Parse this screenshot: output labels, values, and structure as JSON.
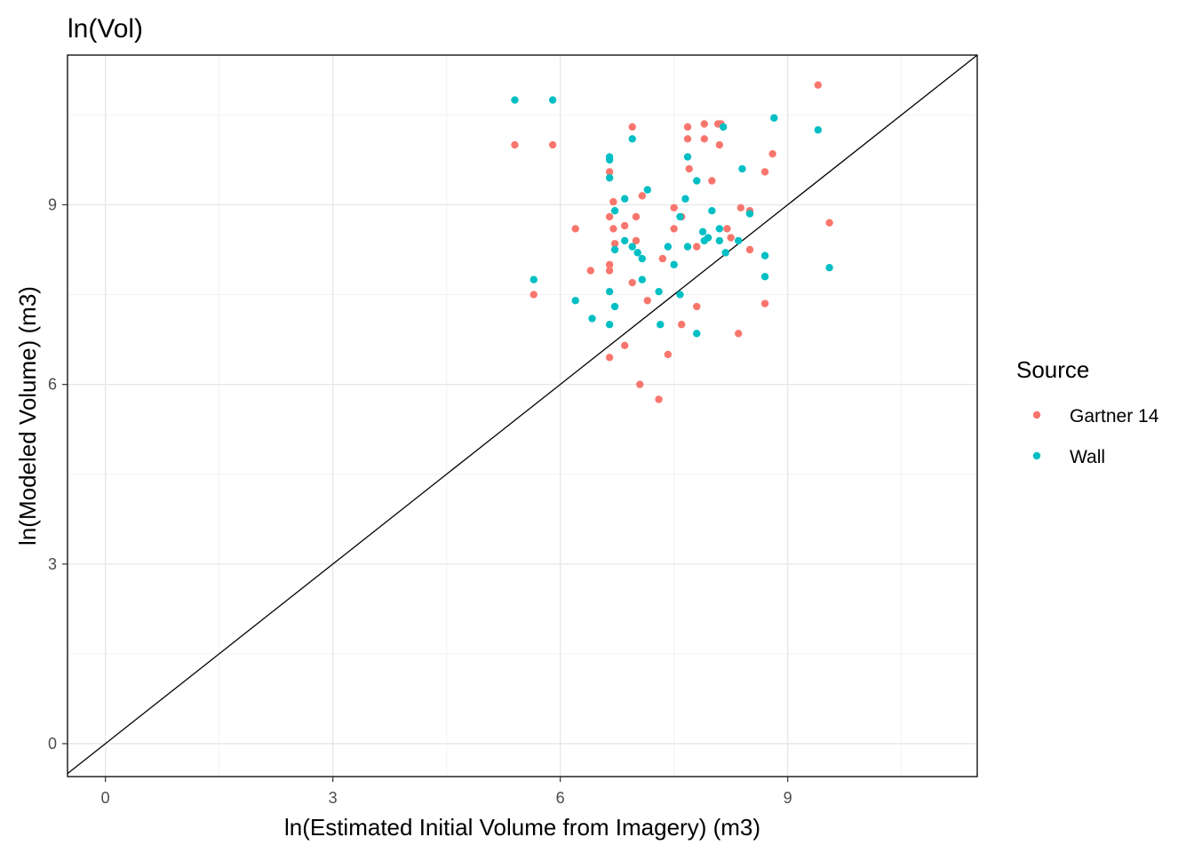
{
  "chart_data": {
    "type": "scatter",
    "title": "ln(Vol)",
    "xlabel": "ln(Estimated Initial Volume from Imagery) (m3)",
    "ylabel": "ln(Modeled Volume) (m3)",
    "xlim": [
      -0.5,
      11.5
    ],
    "ylim": [
      -0.55,
      11.5
    ],
    "x_ticks": [
      0,
      3,
      6,
      9
    ],
    "y_ticks": [
      0,
      3,
      6,
      9
    ],
    "x_tick_labels": [
      "0",
      "3",
      "6",
      "9"
    ],
    "y_tick_labels": [
      "0",
      "3",
      "6",
      "9"
    ],
    "grid": true,
    "reference_line": "y = x",
    "legend": {
      "title": "Source",
      "position": "right"
    },
    "series": [
      {
        "name": "Gartner 14",
        "color": "#F8766D",
        "points": [
          [
            5.4,
            10.0
          ],
          [
            5.9,
            10.0
          ],
          [
            5.65,
            7.5
          ],
          [
            6.2,
            8.6
          ],
          [
            6.4,
            7.9
          ],
          [
            6.65,
            9.55
          ],
          [
            6.65,
            8.8
          ],
          [
            6.65,
            8.0
          ],
          [
            6.65,
            7.9
          ],
          [
            6.65,
            6.45
          ],
          [
            6.7,
            9.05
          ],
          [
            6.7,
            8.6
          ],
          [
            6.72,
            8.35
          ],
          [
            6.85,
            8.65
          ],
          [
            6.85,
            6.65
          ],
          [
            6.95,
            10.3
          ],
          [
            6.95,
            7.7
          ],
          [
            7.0,
            8.8
          ],
          [
            7.0,
            8.4
          ],
          [
            7.05,
            6.0
          ],
          [
            7.08,
            9.15
          ],
          [
            7.15,
            7.4
          ],
          [
            7.35,
            8.1
          ],
          [
            7.3,
            5.75
          ],
          [
            7.42,
            6.5
          ],
          [
            7.5,
            8.95
          ],
          [
            7.5,
            8.6
          ],
          [
            7.6,
            8.8
          ],
          [
            7.6,
            7.0
          ],
          [
            7.68,
            10.3
          ],
          [
            7.68,
            10.1
          ],
          [
            7.7,
            9.6
          ],
          [
            7.8,
            8.3
          ],
          [
            7.8,
            7.3
          ],
          [
            7.9,
            10.35
          ],
          [
            7.9,
            10.1
          ],
          [
            8.0,
            9.4
          ],
          [
            8.08,
            10.35
          ],
          [
            8.1,
            10.0
          ],
          [
            8.12,
            10.35
          ],
          [
            8.2,
            8.6
          ],
          [
            8.25,
            8.45
          ],
          [
            8.38,
            8.95
          ],
          [
            8.35,
            6.85
          ],
          [
            8.5,
            8.9
          ],
          [
            8.5,
            8.25
          ],
          [
            8.7,
            9.55
          ],
          [
            8.7,
            7.35
          ],
          [
            8.8,
            9.85
          ],
          [
            9.4,
            11.0
          ],
          [
            9.55,
            8.7
          ]
        ]
      },
      {
        "name": "Wall",
        "color": "#00BFC4",
        "points": [
          [
            5.4,
            10.75
          ],
          [
            5.9,
            10.75
          ],
          [
            5.65,
            7.75
          ],
          [
            6.2,
            7.4
          ],
          [
            6.42,
            7.1
          ],
          [
            6.65,
            9.8
          ],
          [
            6.65,
            9.75
          ],
          [
            6.65,
            9.45
          ],
          [
            6.65,
            7.55
          ],
          [
            6.65,
            7.0
          ],
          [
            6.72,
            8.9
          ],
          [
            6.72,
            8.25
          ],
          [
            6.72,
            7.3
          ],
          [
            6.85,
            9.1
          ],
          [
            6.85,
            8.4
          ],
          [
            6.95,
            10.1
          ],
          [
            6.95,
            8.3
          ],
          [
            7.02,
            8.2
          ],
          [
            7.08,
            8.1
          ],
          [
            7.08,
            7.75
          ],
          [
            7.15,
            9.25
          ],
          [
            7.3,
            7.55
          ],
          [
            7.32,
            7.0
          ],
          [
            7.42,
            8.3
          ],
          [
            7.5,
            8.0
          ],
          [
            7.58,
            8.8
          ],
          [
            7.58,
            7.5
          ],
          [
            7.65,
            9.1
          ],
          [
            7.68,
            9.8
          ],
          [
            7.68,
            8.3
          ],
          [
            7.8,
            9.4
          ],
          [
            7.8,
            6.85
          ],
          [
            7.88,
            8.55
          ],
          [
            7.9,
            8.4
          ],
          [
            7.95,
            8.45
          ],
          [
            8.0,
            8.9
          ],
          [
            8.1,
            8.6
          ],
          [
            8.1,
            8.4
          ],
          [
            8.15,
            10.3
          ],
          [
            8.18,
            8.2
          ],
          [
            8.35,
            8.4
          ],
          [
            8.4,
            9.6
          ],
          [
            8.5,
            8.85
          ],
          [
            8.7,
            8.15
          ],
          [
            8.7,
            7.8
          ],
          [
            8.82,
            10.45
          ],
          [
            9.4,
            10.25
          ],
          [
            9.55,
            7.95
          ]
        ]
      }
    ]
  }
}
